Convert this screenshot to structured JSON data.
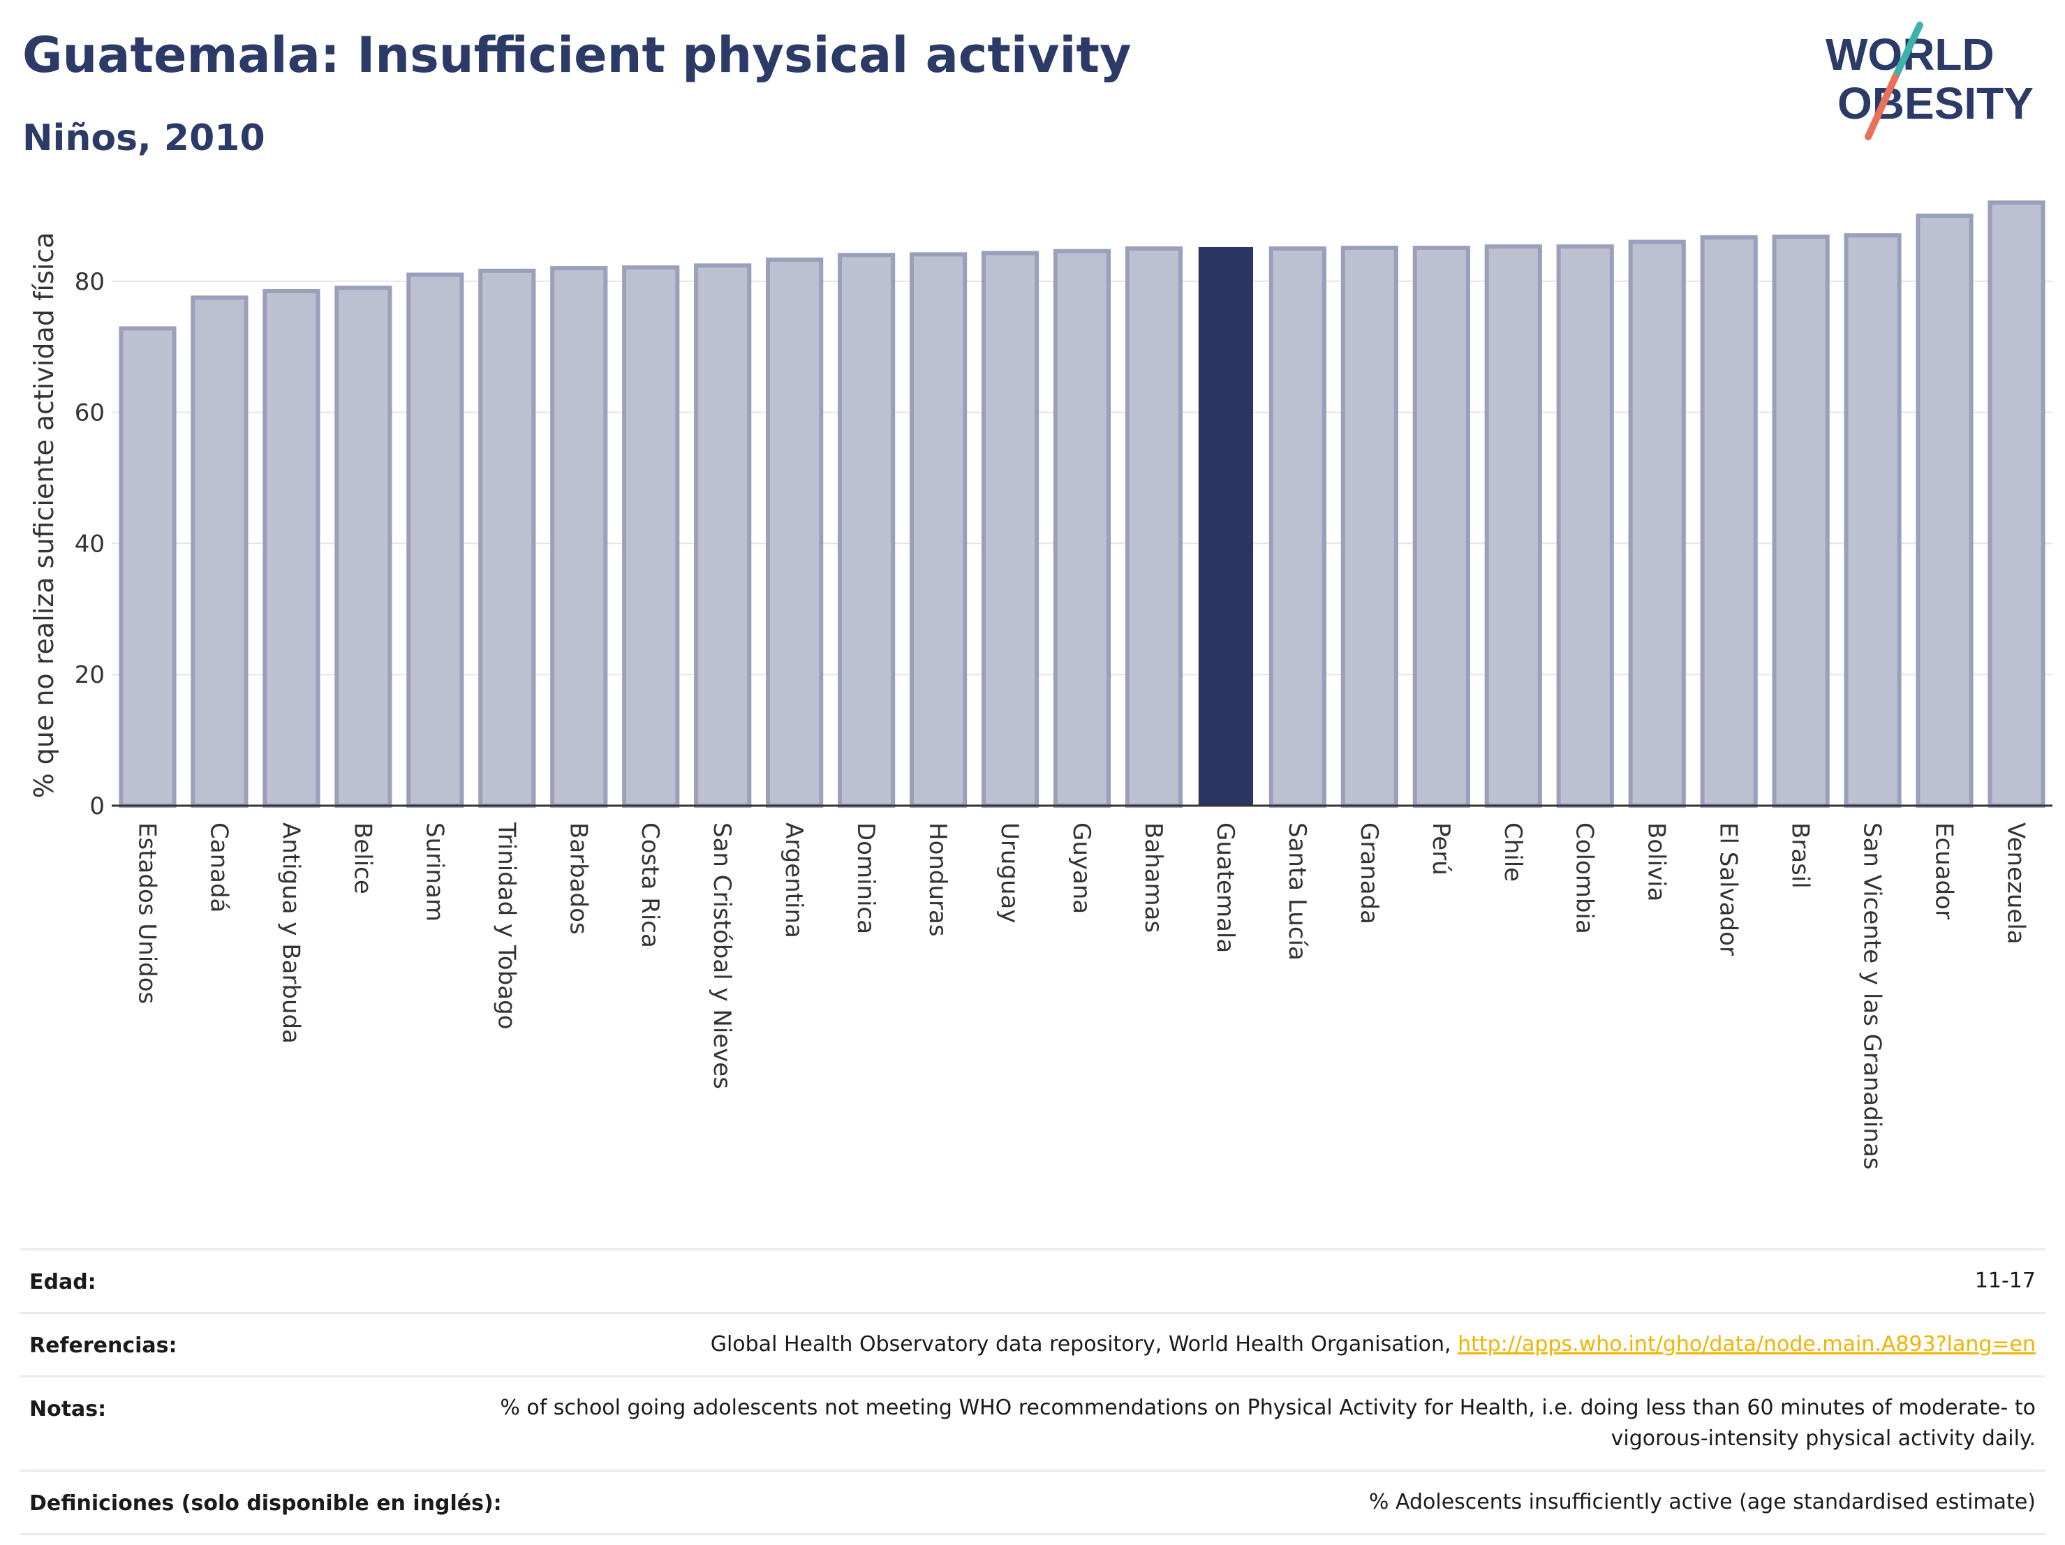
{
  "header": {
    "title": "Guatemala: Insufficient physical activity",
    "subtitle": "Niños, 2010"
  },
  "logo": {
    "line1": "WORLD",
    "line2": "OBESITY",
    "colors": {
      "text": "#2b3a67",
      "slash_top": "#3bb3a8",
      "slash_bottom": "#e8715a"
    }
  },
  "colors": {
    "bar": "#bcc0d0",
    "bar_border": "#9aa0bc",
    "highlight": "#2b3561",
    "grid": "#e3e5ec",
    "axis": "#333333"
  },
  "chart_data": {
    "type": "bar",
    "title": "Guatemala: Insufficient physical activity",
    "subtitle": "Niños, 2010",
    "xlabel": "",
    "ylabel": "% que no realiza suficiente actividad física",
    "ylim": [
      0,
      95
    ],
    "yticks": [
      0,
      20,
      40,
      60,
      80
    ],
    "grid": true,
    "highlight": "Guatemala",
    "categories": [
      "Estados Unidos",
      "Canadá",
      "Antigua y Barbuda",
      "Belice",
      "Surinam",
      "Trinidad y Tobago",
      "Barbados",
      "Costa Rica",
      "San Cristóbal y Nieves",
      "Argentina",
      "Dominica",
      "Honduras",
      "Uruguay",
      "Guyana",
      "Bahamas",
      "Guatemala",
      "Santa Lucía",
      "Granada",
      "Perú",
      "Chile",
      "Colombia",
      "Bolivia",
      "El Salvador",
      "Brasil",
      "San Vicente y las Granadinas",
      "Ecuador",
      "Venezuela"
    ],
    "values": [
      72.8,
      77.5,
      78.5,
      79.0,
      81.0,
      81.6,
      82.0,
      82.1,
      82.4,
      83.3,
      84.0,
      84.1,
      84.3,
      84.6,
      85.0,
      85.1,
      85.0,
      85.1,
      85.1,
      85.3,
      85.3,
      86.0,
      86.7,
      86.8,
      87.0,
      90.0,
      92.0
    ]
  },
  "meta": {
    "edad_label": "Edad:",
    "edad_value": "11-17",
    "ref_label": "Referencias:",
    "ref_text": "Global Health Observatory data repository, World Health Organisation,",
    "ref_link": "http://apps.who.int/gho/data/node.main.A893?lang=en",
    "notes_label": "Notas:",
    "notes_value": "% of school going adolescents not meeting WHO recommendations on Physical Activity for Health, i.e. doing less than 60 minutes of moderate- to vigorous-intensity physical activity daily.",
    "def_label": "Definiciones (solo disponible en inglés):",
    "def_value": "% Adolescents insufficiently active (age standardised estimate)"
  }
}
